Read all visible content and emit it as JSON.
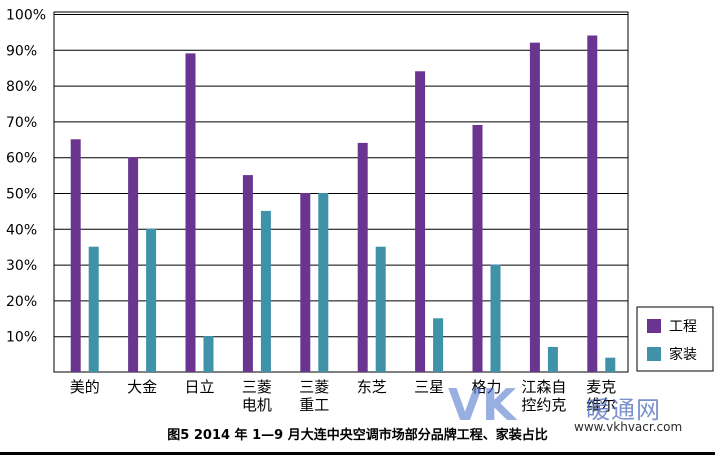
{
  "chart_data": {
    "type": "bar",
    "title": "图5  2014 年 1—9 月大连中央空调市场部分品牌工程、家装占比",
    "categories": [
      "美的",
      "大金",
      "日立",
      "三菱电机",
      "三菱重工",
      "东芝",
      "三星",
      "格力",
      "江森自控约克",
      "麦克维尔"
    ],
    "category_lines": [
      [
        "美的"
      ],
      [
        "大金"
      ],
      [
        "日立"
      ],
      [
        "三菱",
        "电机"
      ],
      [
        "三菱",
        "重工"
      ],
      [
        "东芝"
      ],
      [
        "三星"
      ],
      [
        "格力"
      ],
      [
        "江森自",
        "控约克"
      ],
      [
        "麦克",
        "维尔"
      ]
    ],
    "series": [
      {
        "name": "工程",
        "color": "#6a3590",
        "values": [
          65,
          60,
          89,
          55,
          50,
          64,
          84,
          69,
          92,
          94
        ]
      },
      {
        "name": "家装",
        "color": "#3f92a8",
        "values": [
          35,
          40,
          10,
          45,
          50,
          35,
          15,
          30,
          7,
          4
        ]
      }
    ],
    "yticks": [
      "100%",
      "90%",
      "80%",
      "70%",
      "60%",
      "50%",
      "40%",
      "30%",
      "20%",
      "10%"
    ],
    "ylim": [
      0,
      100
    ],
    "grid": true,
    "legend_position": "right"
  },
  "caption": "图5  2014 年 1—9 月大连中央空调市场部分品牌工程、家装占比",
  "watermark": {
    "logo": "VK",
    "name": "暖通网",
    "url": "www.vkhvacr.com"
  }
}
